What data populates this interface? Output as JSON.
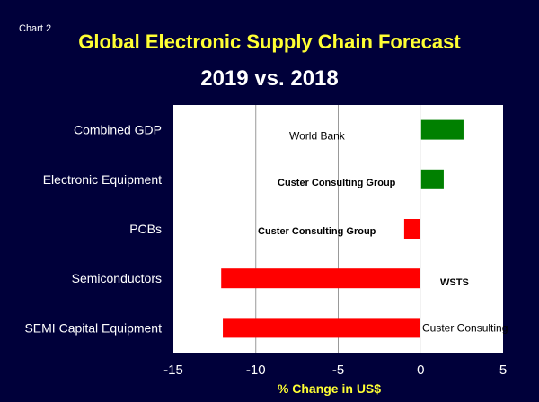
{
  "chart_label": "Chart 2",
  "chart_data": {
    "type": "bar",
    "orientation": "horizontal",
    "title": "Global Electronic Supply Chain Forecast",
    "subtitle": "2019 vs. 2018",
    "xlabel": "% Change in US$",
    "xlim": [
      -15,
      5
    ],
    "xticks": [
      -15,
      -10,
      -5,
      0,
      5
    ],
    "categories": [
      "Combined GDP",
      "Electronic Equipment",
      "PCBs",
      "Semiconductors",
      "SEMI Capital Equipment"
    ],
    "values": [
      2.6,
      1.4,
      -1.0,
      -12.1,
      -12.0
    ],
    "sources": [
      {
        "text": "World Bank",
        "bold": false
      },
      {
        "text": "Custer Consulting Group",
        "bold": true
      },
      {
        "text": "Custer Consulting Group",
        "bold": true
      },
      {
        "text": "WSTS",
        "bold": true
      },
      {
        "text": "Custer Consulting",
        "bold": false
      }
    ],
    "colors": {
      "positive": "#008000",
      "negative": "#ff0000",
      "plot_bg": "#ffffff",
      "grid": "#999999",
      "title": "#ffff33",
      "xlabel": "#ffff33",
      "text": "#ffffff"
    },
    "grid": true
  }
}
